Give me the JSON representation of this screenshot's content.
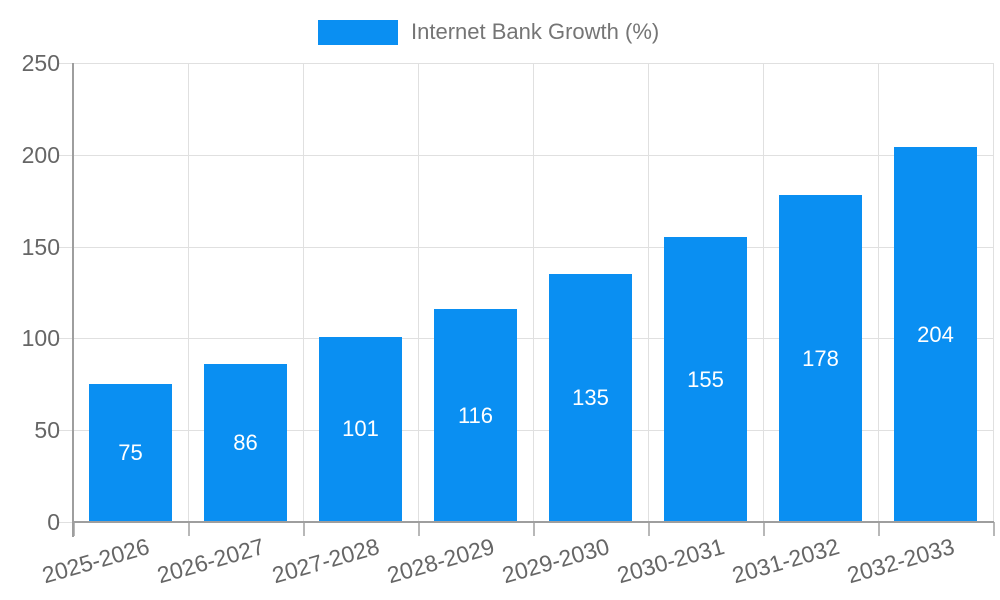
{
  "chart": {
    "legend_label": "Internet Bank Growth (%)"
  },
  "chart_data": {
    "type": "bar",
    "title": "",
    "categories": [
      "2025-2026",
      "2026-2027",
      "2027-2028",
      "2028-2029",
      "2029-2030",
      "2030-2031",
      "2031-2032",
      "2032-2033"
    ],
    "values": [
      75,
      86,
      101,
      116,
      135,
      155,
      178,
      204
    ],
    "series_name": "Internet Bank Growth (%)",
    "xlabel": "",
    "ylabel": "",
    "ylim": [
      0,
      250
    ],
    "ytick_step": 50,
    "yticks": [
      0,
      50,
      100,
      150,
      200,
      250
    ],
    "grid": "on",
    "legend_position": "top-center",
    "value_labels": "inside-center",
    "colors": {
      "bar": "#0a8ff2",
      "value_label": "#ffffff",
      "grid_line": "#e0e0e0",
      "axis_line": "#9e9e9e",
      "tick_mark": "#b8b8b8",
      "tick_label": "#666666",
      "legend_text": "#757575",
      "background": "#ffffff"
    }
  }
}
